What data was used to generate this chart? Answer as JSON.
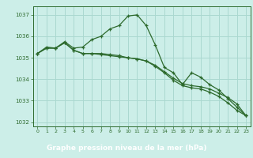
{
  "line1": {
    "x": [
      0,
      1,
      2,
      3,
      4,
      5,
      6,
      7,
      8,
      9,
      10,
      11,
      12,
      13,
      14,
      15,
      16,
      17,
      18,
      19,
      20,
      21,
      22,
      23
    ],
    "y": [
      1035.2,
      1035.5,
      1035.45,
      1035.75,
      1035.45,
      1035.5,
      1035.85,
      1036.0,
      1036.35,
      1036.5,
      1036.95,
      1037.0,
      1036.5,
      1035.6,
      1034.55,
      1034.3,
      1033.75,
      1034.3,
      1034.1,
      1033.75,
      1033.5,
      1033.1,
      1032.7,
      1032.3
    ]
  },
  "line2": {
    "x": [
      0,
      1,
      2,
      3,
      4,
      5,
      6,
      7,
      8,
      9,
      10,
      11,
      12,
      13,
      14,
      15,
      16,
      17,
      18,
      19,
      20,
      21,
      22,
      23
    ],
    "y": [
      1035.2,
      1035.45,
      1035.45,
      1035.7,
      1035.35,
      1035.2,
      1035.2,
      1035.2,
      1035.15,
      1035.1,
      1035.0,
      1034.95,
      1034.85,
      1034.65,
      1034.35,
      1034.05,
      1033.8,
      1033.7,
      1033.65,
      1033.55,
      1033.35,
      1033.15,
      1032.85,
      1032.3
    ]
  },
  "line3": {
    "x": [
      0,
      1,
      2,
      3,
      4,
      5,
      6,
      7,
      8,
      9,
      10,
      11,
      12,
      13,
      14,
      15,
      16,
      17,
      18,
      19,
      20,
      21,
      22,
      23
    ],
    "y": [
      1035.2,
      1035.45,
      1035.45,
      1035.7,
      1035.35,
      1035.2,
      1035.2,
      1035.15,
      1035.1,
      1035.05,
      1035.0,
      1034.95,
      1034.85,
      1034.6,
      1034.3,
      1033.95,
      1033.7,
      1033.6,
      1033.55,
      1033.4,
      1033.2,
      1032.9,
      1032.55,
      1032.3
    ]
  },
  "line_color": "#2d6a2d",
  "bg_color": "#cceee8",
  "grid_color": "#aad8d0",
  "xlabel": "Graphe pression niveau de la mer (hPa)",
  "xlabel_bg": "#2d6a2d",
  "xlabel_color": "#ffffff",
  "ylim": [
    1031.8,
    1037.4
  ],
  "xlim": [
    -0.5,
    23.5
  ],
  "yticks": [
    1032,
    1033,
    1034,
    1035,
    1036,
    1037
  ],
  "xticks": [
    0,
    1,
    2,
    3,
    4,
    5,
    6,
    7,
    8,
    9,
    10,
    11,
    12,
    13,
    14,
    15,
    16,
    17,
    18,
    19,
    20,
    21,
    22,
    23
  ]
}
